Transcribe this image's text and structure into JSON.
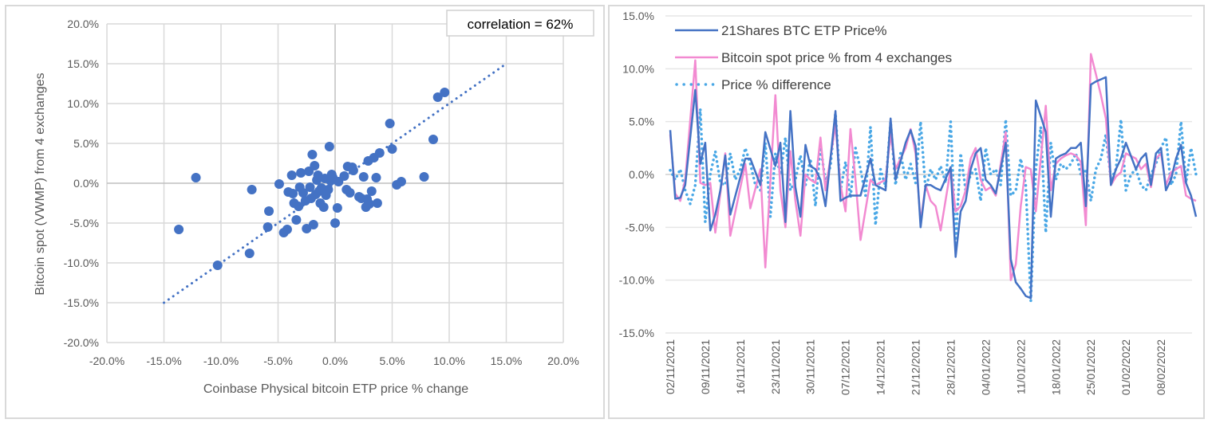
{
  "chart_data": [
    {
      "type": "scatter",
      "title": "",
      "xlabel": "Coinbase Physical bitcoin ETP price % change",
      "ylabel": "Bitcoin spot (VWMP) from 4 exchanges",
      "xlim": [
        -20,
        20
      ],
      "ylim": [
        -20,
        20
      ],
      "x_ticks": [
        "-20.0%",
        "-15.0%",
        "-10.0%",
        "-5.0%",
        "0.0%",
        "5.0%",
        "10.0%",
        "15.0%",
        "20.0%"
      ],
      "y_ticks": [
        "20.0%",
        "15.0%",
        "10.0%",
        "5.0%",
        "0.0%",
        "-5.0%",
        "-10.0%",
        "-15.0%",
        "-20.0%"
      ],
      "grid": true,
      "annotation": "correlation = 62%",
      "marker_color": "#4472c4",
      "trendline": {
        "style": "dotted",
        "x": [
          -15,
          15
        ],
        "y": [
          -15,
          15
        ]
      },
      "points": [
        [
          -13.7,
          -5.8
        ],
        [
          -12.2,
          0.7
        ],
        [
          -10.3,
          -10.3
        ],
        [
          -7.5,
          -8.8
        ],
        [
          -7.3,
          -0.8
        ],
        [
          -5.9,
          -5.5
        ],
        [
          -5.8,
          -3.5
        ],
        [
          -4.9,
          -0.1
        ],
        [
          -4.5,
          -6.2
        ],
        [
          -4.2,
          -5.8
        ],
        [
          -4.1,
          -1.1
        ],
        [
          -3.8,
          1.0
        ],
        [
          -3.7,
          -1.3
        ],
        [
          -3.6,
          -2.5
        ],
        [
          -3.4,
          -4.6
        ],
        [
          -3.2,
          -2.9
        ],
        [
          -3.1,
          -0.5
        ],
        [
          -3.0,
          1.3
        ],
        [
          -2.8,
          -1.2
        ],
        [
          -2.6,
          -2.2
        ],
        [
          -2.5,
          -5.7
        ],
        [
          -2.3,
          1.5
        ],
        [
          -2.2,
          -0.5
        ],
        [
          -2.1,
          -1.9
        ],
        [
          -2.0,
          3.6
        ],
        [
          -1.9,
          -5.2
        ],
        [
          -1.8,
          2.2
        ],
        [
          -1.7,
          -1.4
        ],
        [
          -1.6,
          0.4
        ],
        [
          -1.5,
          1.0
        ],
        [
          -1.4,
          -1.0
        ],
        [
          -1.3,
          -2.5
        ],
        [
          -1.2,
          -0.6
        ],
        [
          -1.0,
          -3.0
        ],
        [
          -0.9,
          0.6
        ],
        [
          -0.8,
          -1.5
        ],
        [
          -0.6,
          -0.8
        ],
        [
          -0.5,
          4.6
        ],
        [
          -0.4,
          0.3
        ],
        [
          -0.3,
          1.1
        ],
        [
          -0.2,
          0.7
        ],
        [
          0.0,
          -5.0
        ],
        [
          0.2,
          -3.1
        ],
        [
          0.3,
          0.2
        ],
        [
          0.8,
          0.9
        ],
        [
          1.0,
          -0.8
        ],
        [
          1.1,
          2.1
        ],
        [
          1.3,
          -1.2
        ],
        [
          1.5,
          2.0
        ],
        [
          1.6,
          1.6
        ],
        [
          2.1,
          -1.7
        ],
        [
          2.3,
          -1.9
        ],
        [
          2.5,
          0.8
        ],
        [
          2.7,
          -3.0
        ],
        [
          2.8,
          -2.0
        ],
        [
          2.9,
          2.8
        ],
        [
          3.0,
          -2.6
        ],
        [
          3.2,
          -1.0
        ],
        [
          3.4,
          3.2
        ],
        [
          3.6,
          0.7
        ],
        [
          3.7,
          -2.5
        ],
        [
          3.9,
          3.8
        ],
        [
          4.8,
          7.5
        ],
        [
          5.0,
          4.3
        ],
        [
          5.4,
          -0.2
        ],
        [
          5.8,
          0.2
        ],
        [
          7.8,
          0.8
        ],
        [
          8.6,
          5.5
        ],
        [
          9.0,
          10.8
        ],
        [
          9.6,
          11.4
        ]
      ]
    },
    {
      "type": "line",
      "title": "",
      "xlabel": "",
      "ylabel": "",
      "ylim": [
        -15,
        15
      ],
      "y_ticks": [
        "15.0%",
        "10.0%",
        "5.0%",
        "0.0%",
        "-5.0%",
        "-10.0%",
        "-15.0%"
      ],
      "x_ticks": [
        "02/11/2021",
        "09/11/2021",
        "16/11/2021",
        "23/11/2021",
        "30/11/2021",
        "07/12/2021",
        "14/12/2021",
        "21/12/2021",
        "28/12/2021",
        "04/01/2022",
        "11/01/2022",
        "18/01/2022",
        "25/01/2022",
        "01/02/2022",
        "08/02/2022"
      ],
      "grid": true,
      "legend_position": "top-left",
      "x_day_range": [
        0,
        105
      ],
      "series": [
        {
          "name": "21Shares BTC ETP Price%",
          "color": "#4472c4",
          "style": "solid",
          "x": [
            0,
            1,
            2,
            3,
            5,
            6,
            7,
            8,
            9,
            10,
            11,
            12,
            15,
            16,
            18,
            19,
            21,
            22,
            23,
            24,
            25,
            26,
            27,
            28,
            29,
            30,
            31,
            33,
            34,
            35,
            36,
            37,
            38,
            40,
            41,
            43,
            44,
            45,
            47,
            48,
            49,
            50,
            51,
            52,
            53,
            54,
            56,
            57,
            58,
            59,
            60,
            61,
            62,
            63,
            64,
            65,
            67,
            68,
            69,
            70,
            71,
            72,
            73,
            75,
            76,
            77,
            78,
            79,
            80,
            81,
            82,
            83,
            84,
            85,
            86,
            87,
            88,
            89,
            90,
            91,
            93,
            94,
            95,
            96,
            97,
            98,
            99,
            100,
            101,
            102,
            103,
            104,
            105
          ],
          "values": [
            4.2,
            -2.3,
            -2.2,
            -1.0,
            8.0,
            1.0,
            3.0,
            -5.3,
            -3.8,
            -1.5,
            1.8,
            -3.8,
            1.5,
            1.5,
            -1.0,
            4.0,
            0.8,
            3.0,
            -4.5,
            6.0,
            -1.2,
            -4.0,
            2.8,
            0.8,
            0.5,
            -0.5,
            -3.0,
            6.0,
            -2.5,
            -2.2,
            -2.0,
            -2.0,
            -2.0,
            1.5,
            -1.0,
            -1.5,
            5.3,
            -0.5,
            3.0,
            4.2,
            2.7,
            -5.0,
            -1.0,
            -1.0,
            -1.3,
            -1.5,
            0.7,
            -7.8,
            -3.5,
            -2.5,
            0.5,
            2.0,
            2.5,
            -0.5,
            -1.0,
            -1.8,
            3.0,
            -8.0,
            -10.2,
            -10.8,
            -11.5,
            -11.7,
            7.0,
            4.0,
            -4.0,
            1.5,
            1.8,
            2.0,
            2.5,
            2.5,
            3.0,
            -3.0,
            8.5,
            8.8,
            9.0,
            9.2,
            -1.0,
            0.5,
            1.5,
            3.0,
            0.5,
            1.5,
            2.0,
            -1.0,
            2.0,
            2.5,
            -1.5,
            -0.5,
            1.5,
            2.8,
            -0.8,
            -2.0,
            -4.0
          ]
        },
        {
          "name": "Bitcoin spot price % from 4 exchanges",
          "color": "#f28ad1",
          "style": "solid",
          "x": [
            0,
            1,
            2,
            3,
            5,
            6,
            7,
            8,
            9,
            10,
            11,
            12,
            15,
            16,
            18,
            19,
            21,
            22,
            23,
            24,
            25,
            26,
            27,
            28,
            29,
            30,
            31,
            33,
            34,
            35,
            36,
            37,
            38,
            40,
            41,
            43,
            44,
            45,
            47,
            48,
            49,
            50,
            51,
            52,
            53,
            54,
            56,
            57,
            58,
            59,
            60,
            61,
            62,
            63,
            64,
            65,
            67,
            68,
            69,
            70,
            71,
            72,
            73,
            75,
            76,
            77,
            78,
            79,
            80,
            81,
            82,
            83,
            84,
            85,
            86,
            87,
            88,
            89,
            90,
            91,
            93,
            94,
            95,
            96,
            97,
            98,
            99,
            100,
            101,
            102,
            103,
            104,
            105
          ],
          "values": [
            3.8,
            -1.8,
            -2.5,
            -0.5,
            10.8,
            -0.8,
            -1.0,
            -0.8,
            -5.5,
            -1.8,
            2.0,
            -5.8,
            1.0,
            -3.2,
            0.5,
            -8.8,
            7.5,
            -1.5,
            -5.0,
            2.2,
            -2.5,
            -5.8,
            0.0,
            -0.5,
            -0.8,
            3.5,
            -1.5,
            4.7,
            -1.0,
            -3.5,
            4.3,
            -0.5,
            -6.2,
            -0.5,
            -1.0,
            -0.5,
            3.8,
            0.5,
            2.5,
            4.3,
            2.0,
            -4.5,
            -1.0,
            -2.5,
            -3.0,
            -5.3,
            0.5,
            -3.5,
            -3.0,
            -1.5,
            1.5,
            2.5,
            -0.5,
            -1.5,
            -1.2,
            -2.0,
            4.0,
            -10.0,
            -8.5,
            -3.0,
            0.7,
            0.5,
            -3.5,
            6.5,
            -1.5,
            1.0,
            1.5,
            1.8,
            2.0,
            1.8,
            1.2,
            -4.8,
            11.4,
            9.5,
            7.5,
            5.3,
            -1.0,
            -0.2,
            0.2,
            2.0,
            1.5,
            0.5,
            1.0,
            -1.2,
            1.5,
            2.0,
            -1.0,
            0.2,
            0.5,
            0.8,
            -2.0,
            -2.3,
            -2.5
          ]
        },
        {
          "name": "Price % difference",
          "color": "#4aa8e6",
          "style": "dotted",
          "x": [
            0,
            1,
            2,
            3,
            4,
            5,
            6,
            7,
            8,
            9,
            10,
            11,
            12,
            13,
            14,
            15,
            16,
            17,
            18,
            19,
            20,
            21,
            22,
            23,
            24,
            25,
            26,
            27,
            28,
            29,
            30,
            31,
            32,
            33,
            34,
            35,
            36,
            37,
            38,
            39,
            40,
            41,
            42,
            43,
            44,
            45,
            46,
            47,
            48,
            49,
            50,
            51,
            52,
            53,
            54,
            55,
            56,
            57,
            58,
            59,
            60,
            61,
            62,
            63,
            64,
            65,
            66,
            67,
            68,
            69,
            70,
            71,
            72,
            73,
            74,
            75,
            76,
            77,
            78,
            79,
            80,
            81,
            82,
            83,
            84,
            85,
            86,
            87,
            88,
            89,
            90,
            91,
            92,
            93,
            94,
            95,
            96,
            97,
            98,
            99,
            100,
            101,
            102,
            103,
            104,
            105
          ],
          "values": [
            0.4,
            -0.5,
            0.5,
            -1.5,
            -2.8,
            -1.0,
            6.2,
            -4.5,
            0.0,
            2.2,
            -0.8,
            -1.0,
            2.0,
            -0.5,
            0.5,
            2.5,
            1.0,
            -1.0,
            -1.5,
            3.0,
            -4.0,
            2.0,
            0.0,
            3.5,
            -1.5,
            -0.5,
            1.8,
            -1.0,
            1.5,
            -3.0,
            2.8,
            -0.8,
            0.8,
            5.8,
            -1.5,
            1.2,
            -2.2,
            2.5,
            0.5,
            -2.0,
            4.5,
            -4.8,
            0.5,
            -1.2,
            5.0,
            -1.0,
            2.0,
            -0.5,
            1.0,
            -0.8,
            5.0,
            -1.5,
            0.5,
            -0.5,
            0.8,
            -0.8,
            5.0,
            -6.5,
            2.0,
            -1.5,
            0.0,
            0.5,
            -2.5,
            2.5,
            0.0,
            0.5,
            -1.0,
            5.2,
            -2.0,
            -1.5,
            1.5,
            -1.0,
            -12.0,
            0.5,
            4.5,
            -5.5,
            3.0,
            -0.5,
            1.0,
            0.5,
            1.0,
            2.0,
            0.0,
            0.5,
            -2.5,
            0.5,
            1.5,
            3.8,
            -0.5,
            0.5,
            5.2,
            -1.5,
            0.0,
            0.5,
            -1.0,
            -1.5,
            0.0,
            1.0,
            2.5,
            3.5,
            -1.0,
            0.0,
            5.0,
            -0.8,
            2.5,
            0.0
          ]
        }
      ]
    }
  ]
}
